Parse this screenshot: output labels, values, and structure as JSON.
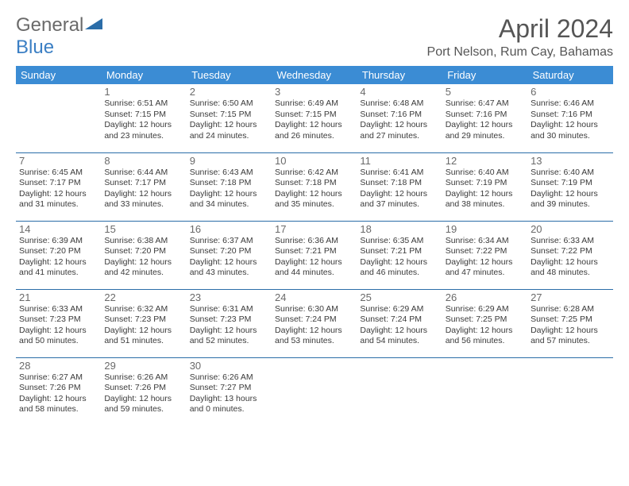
{
  "logo": {
    "text1": "General",
    "text2": "Blue"
  },
  "title": "April 2024",
  "location": "Port Nelson, Rum Cay, Bahamas",
  "colors": {
    "header_bg": "#3b8cd4",
    "header_text": "#ffffff",
    "row_border": "#2b6da8",
    "logo_gray": "#6a6a6a",
    "logo_blue": "#3b7fc4",
    "text": "#3a3a3a"
  },
  "day_headers": [
    "Sunday",
    "Monday",
    "Tuesday",
    "Wednesday",
    "Thursday",
    "Friday",
    "Saturday"
  ],
  "weeks": [
    [
      null,
      {
        "n": "1",
        "sr": "6:51 AM",
        "ss": "7:15 PM",
        "dl": "12 hours and 23 minutes."
      },
      {
        "n": "2",
        "sr": "6:50 AM",
        "ss": "7:15 PM",
        "dl": "12 hours and 24 minutes."
      },
      {
        "n": "3",
        "sr": "6:49 AM",
        "ss": "7:15 PM",
        "dl": "12 hours and 26 minutes."
      },
      {
        "n": "4",
        "sr": "6:48 AM",
        "ss": "7:16 PM",
        "dl": "12 hours and 27 minutes."
      },
      {
        "n": "5",
        "sr": "6:47 AM",
        "ss": "7:16 PM",
        "dl": "12 hours and 29 minutes."
      },
      {
        "n": "6",
        "sr": "6:46 AM",
        "ss": "7:16 PM",
        "dl": "12 hours and 30 minutes."
      }
    ],
    [
      {
        "n": "7",
        "sr": "6:45 AM",
        "ss": "7:17 PM",
        "dl": "12 hours and 31 minutes."
      },
      {
        "n": "8",
        "sr": "6:44 AM",
        "ss": "7:17 PM",
        "dl": "12 hours and 33 minutes."
      },
      {
        "n": "9",
        "sr": "6:43 AM",
        "ss": "7:18 PM",
        "dl": "12 hours and 34 minutes."
      },
      {
        "n": "10",
        "sr": "6:42 AM",
        "ss": "7:18 PM",
        "dl": "12 hours and 35 minutes."
      },
      {
        "n": "11",
        "sr": "6:41 AM",
        "ss": "7:18 PM",
        "dl": "12 hours and 37 minutes."
      },
      {
        "n": "12",
        "sr": "6:40 AM",
        "ss": "7:19 PM",
        "dl": "12 hours and 38 minutes."
      },
      {
        "n": "13",
        "sr": "6:40 AM",
        "ss": "7:19 PM",
        "dl": "12 hours and 39 minutes."
      }
    ],
    [
      {
        "n": "14",
        "sr": "6:39 AM",
        "ss": "7:20 PM",
        "dl": "12 hours and 41 minutes."
      },
      {
        "n": "15",
        "sr": "6:38 AM",
        "ss": "7:20 PM",
        "dl": "12 hours and 42 minutes."
      },
      {
        "n": "16",
        "sr": "6:37 AM",
        "ss": "7:20 PM",
        "dl": "12 hours and 43 minutes."
      },
      {
        "n": "17",
        "sr": "6:36 AM",
        "ss": "7:21 PM",
        "dl": "12 hours and 44 minutes."
      },
      {
        "n": "18",
        "sr": "6:35 AM",
        "ss": "7:21 PM",
        "dl": "12 hours and 46 minutes."
      },
      {
        "n": "19",
        "sr": "6:34 AM",
        "ss": "7:22 PM",
        "dl": "12 hours and 47 minutes."
      },
      {
        "n": "20",
        "sr": "6:33 AM",
        "ss": "7:22 PM",
        "dl": "12 hours and 48 minutes."
      }
    ],
    [
      {
        "n": "21",
        "sr": "6:33 AM",
        "ss": "7:23 PM",
        "dl": "12 hours and 50 minutes."
      },
      {
        "n": "22",
        "sr": "6:32 AM",
        "ss": "7:23 PM",
        "dl": "12 hours and 51 minutes."
      },
      {
        "n": "23",
        "sr": "6:31 AM",
        "ss": "7:23 PM",
        "dl": "12 hours and 52 minutes."
      },
      {
        "n": "24",
        "sr": "6:30 AM",
        "ss": "7:24 PM",
        "dl": "12 hours and 53 minutes."
      },
      {
        "n": "25",
        "sr": "6:29 AM",
        "ss": "7:24 PM",
        "dl": "12 hours and 54 minutes."
      },
      {
        "n": "26",
        "sr": "6:29 AM",
        "ss": "7:25 PM",
        "dl": "12 hours and 56 minutes."
      },
      {
        "n": "27",
        "sr": "6:28 AM",
        "ss": "7:25 PM",
        "dl": "12 hours and 57 minutes."
      }
    ],
    [
      {
        "n": "28",
        "sr": "6:27 AM",
        "ss": "7:26 PM",
        "dl": "12 hours and 58 minutes."
      },
      {
        "n": "29",
        "sr": "6:26 AM",
        "ss": "7:26 PM",
        "dl": "12 hours and 59 minutes."
      },
      {
        "n": "30",
        "sr": "6:26 AM",
        "ss": "7:27 PM",
        "dl": "13 hours and 0 minutes."
      },
      null,
      null,
      null,
      null
    ]
  ],
  "labels": {
    "sunrise": "Sunrise:",
    "sunset": "Sunset:",
    "daylight": "Daylight:"
  }
}
